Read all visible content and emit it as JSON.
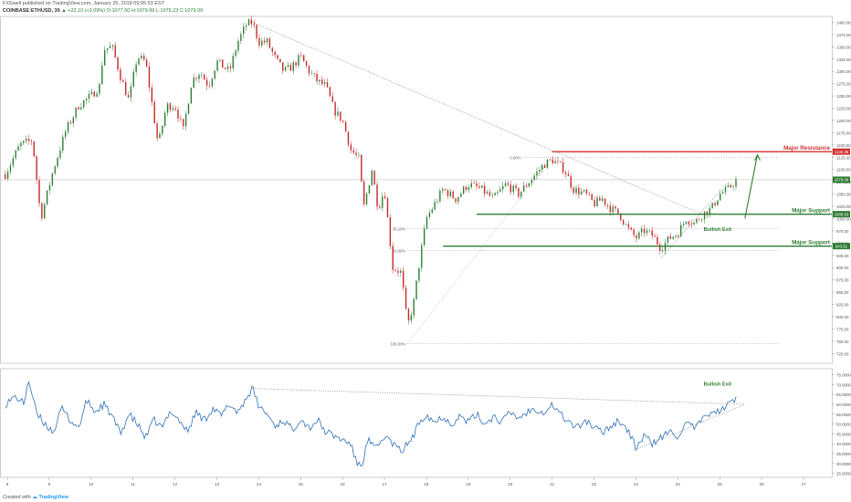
{
  "header": {
    "line1": "FXSwell published on TradingView.com, January 25, 2018 09:05:53 EST",
    "symbol": "COINBASE:ETHUSD, 30",
    "change": "▲ +22.10 (+2.09%)",
    "ohlc": "O:1077.50  H:1079.99  L:1075.23  C:1079.09"
  },
  "footer": {
    "created_with": "Created with",
    "brand": "TradingView"
  },
  "colors": {
    "bull": "#2e7d32",
    "bear": "#c62828",
    "resistance": "#d32f2f",
    "support": "#2e7d32",
    "rsi": "#2f6fb6",
    "fib": "#888888"
  },
  "chart_data": [
    {
      "type": "candlestick",
      "title": "COINBASE:ETHUSD, 30",
      "x_ticks": [
        "8",
        "9",
        "10",
        "11",
        "12",
        "13",
        "14",
        "15",
        "16",
        "17",
        "18",
        "19",
        "20",
        "21",
        "22",
        "23",
        "24",
        "25",
        "26",
        "27"
      ],
      "y_ticks": [
        "1400.00",
        "1375.00",
        "1350.00",
        "1325.00",
        "1300.00",
        "1275.00",
        "1250.00",
        "1225.00",
        "1200.00",
        "1175.00",
        "1150.00",
        "1125.00",
        "1100.00",
        "1075.00",
        "1050.00",
        "1025.00",
        "1000.00",
        "975.00",
        "950.00",
        "925.00",
        "900.00",
        "875.00",
        "850.00",
        "825.00",
        "800.00",
        "775.00",
        "750.00",
        "725.00"
      ],
      "ylim": [
        705,
        1412
      ],
      "last_price": "1079.09",
      "close_path": [
        [
          7.95,
          1090
        ],
        [
          8.3,
          1150
        ],
        [
          8.6,
          1160
        ],
        [
          8.8,
          1000
        ],
        [
          9.1,
          1100
        ],
        [
          9.4,
          1180
        ],
        [
          9.7,
          1230
        ],
        [
          10.0,
          1250
        ],
        [
          10.2,
          1270
        ],
        [
          10.3,
          1345
        ],
        [
          10.5,
          1350
        ],
        [
          10.7,
          1290
        ],
        [
          10.9,
          1240
        ],
        [
          11.1,
          1330
        ],
        [
          11.3,
          1320
        ],
        [
          11.6,
          1150
        ],
        [
          11.8,
          1230
        ],
        [
          12.0,
          1230
        ],
        [
          12.2,
          1180
        ],
        [
          12.4,
          1280
        ],
        [
          12.6,
          1300
        ],
        [
          12.8,
          1270
        ],
        [
          13.0,
          1320
        ],
        [
          13.3,
          1300
        ],
        [
          13.5,
          1360
        ],
        [
          13.7,
          1395
        ],
        [
          13.85,
          1400
        ],
        [
          14.0,
          1360
        ],
        [
          14.2,
          1360
        ],
        [
          14.4,
          1325
        ],
        [
          14.6,
          1300
        ],
        [
          14.8,
          1310
        ],
        [
          15.0,
          1330
        ],
        [
          15.2,
          1300
        ],
        [
          15.4,
          1280
        ],
        [
          15.6,
          1270
        ],
        [
          15.8,
          1220
        ],
        [
          16.0,
          1200
        ],
        [
          16.2,
          1140
        ],
        [
          16.4,
          1120
        ],
        [
          16.5,
          1020
        ],
        [
          16.7,
          1100
        ],
        [
          16.85,
          1020
        ],
        [
          17.0,
          1060
        ],
        [
          17.2,
          900
        ],
        [
          17.4,
          890
        ],
        [
          17.55,
          780
        ],
        [
          17.7,
          830
        ],
        [
          17.85,
          920
        ],
        [
          18.0,
          1000
        ],
        [
          18.2,
          1030
        ],
        [
          18.4,
          1060
        ],
        [
          18.7,
          1040
        ],
        [
          19.0,
          1070
        ],
        [
          19.3,
          1060
        ],
        [
          19.6,
          1040
        ],
        [
          19.9,
          1070
        ],
        [
          20.2,
          1050
        ],
        [
          20.5,
          1080
        ],
        [
          20.8,
          1110
        ],
        [
          21.0,
          1120
        ],
        [
          21.3,
          1100
        ],
        [
          21.5,
          1060
        ],
        [
          21.8,
          1050
        ],
        [
          22.0,
          1030
        ],
        [
          22.2,
          1040
        ],
        [
          22.4,
          1020
        ],
        [
          22.6,
          1010
        ],
        [
          22.8,
          980
        ],
        [
          23.0,
          960
        ],
        [
          23.2,
          975
        ],
        [
          23.4,
          965
        ],
        [
          23.6,
          940
        ],
        [
          23.8,
          960
        ],
        [
          24.0,
          970
        ],
        [
          24.2,
          1000
        ],
        [
          24.4,
          990
        ],
        [
          24.6,
          1010
        ],
        [
          24.8,
          1020
        ],
        [
          25.0,
          1050
        ],
        [
          25.2,
          1060
        ],
        [
          25.4,
          1079
        ]
      ],
      "fibonacci": {
        "levels": [
          "0.00%",
          "38.20%",
          "50.00%",
          "100.00%"
        ],
        "high": 1125,
        "low": 745
      },
      "horizontal_levels": [
        {
          "label": "Major Resistance",
          "value": 1136.38,
          "tag": "1136.38",
          "kind": "resistance"
        },
        {
          "label": "Major Support",
          "value": 1008.93,
          "tag": "1008.93",
          "kind": "support"
        },
        {
          "label": "Major Support",
          "value": 943.81,
          "tag": "943.81",
          "kind": "support"
        }
      ],
      "annotations": [
        "Bullish Exit"
      ],
      "trendline_desc": [
        [
          13.85,
          1400
        ],
        [
          24.6,
          1008
        ]
      ],
      "trendline_asc": [
        [
          23.6,
          920
        ],
        [
          25.0,
          1055
        ]
      ]
    },
    {
      "type": "line",
      "ylim": [
        23,
        78
      ],
      "y_ticks": [
        "75.0000",
        "70.0000",
        "65.0000",
        "60.0000",
        "55.0000",
        "50.0000",
        "45.0000",
        "40.0000",
        "35.0000",
        "30.0000",
        "25.0000"
      ],
      "path": [
        [
          7.95,
          60
        ],
        [
          8.2,
          64
        ],
        [
          8.4,
          60
        ],
        [
          8.5,
          73
        ],
        [
          8.7,
          55
        ],
        [
          8.9,
          50
        ],
        [
          9.1,
          46
        ],
        [
          9.3,
          58
        ],
        [
          9.5,
          52
        ],
        [
          9.7,
          48
        ],
        [
          9.9,
          62
        ],
        [
          10.1,
          56
        ],
        [
          10.3,
          60
        ],
        [
          10.5,
          54
        ],
        [
          10.7,
          45
        ],
        [
          10.9,
          55
        ],
        [
          11.1,
          50
        ],
        [
          11.3,
          43
        ],
        [
          11.5,
          52
        ],
        [
          11.7,
          48
        ],
        [
          11.9,
          57
        ],
        [
          12.1,
          52
        ],
        [
          12.3,
          46
        ],
        [
          12.5,
          56
        ],
        [
          12.7,
          52
        ],
        [
          12.9,
          58
        ],
        [
          13.1,
          54
        ],
        [
          13.3,
          60
        ],
        [
          13.5,
          56
        ],
        [
          13.7,
          63
        ],
        [
          13.85,
          68
        ],
        [
          14.0,
          59
        ],
        [
          14.2,
          55
        ],
        [
          14.4,
          49
        ],
        [
          14.6,
          52
        ],
        [
          14.8,
          47
        ],
        [
          15.0,
          53
        ],
        [
          15.2,
          48
        ],
        [
          15.4,
          52
        ],
        [
          15.6,
          46
        ],
        [
          15.8,
          44
        ],
        [
          16.0,
          42
        ],
        [
          16.2,
          40
        ],
        [
          16.3,
          32
        ],
        [
          16.45,
          28
        ],
        [
          16.6,
          42
        ],
        [
          16.8,
          37
        ],
        [
          17.0,
          44
        ],
        [
          17.2,
          40
        ],
        [
          17.4,
          36
        ],
        [
          17.55,
          40
        ],
        [
          17.7,
          44
        ],
        [
          17.85,
          52
        ],
        [
          18.0,
          55
        ],
        [
          18.2,
          51
        ],
        [
          18.4,
          54
        ],
        [
          18.6,
          50
        ],
        [
          18.8,
          54
        ],
        [
          19.0,
          51
        ],
        [
          19.2,
          55
        ],
        [
          19.4,
          50
        ],
        [
          19.6,
          54
        ],
        [
          19.8,
          51
        ],
        [
          20.0,
          56
        ],
        [
          20.2,
          53
        ],
        [
          20.4,
          56
        ],
        [
          20.6,
          58
        ],
        [
          20.8,
          56
        ],
        [
          21.0,
          60
        ],
        [
          21.2,
          55
        ],
        [
          21.4,
          51
        ],
        [
          21.6,
          48
        ],
        [
          21.8,
          52
        ],
        [
          22.0,
          48
        ],
        [
          22.2,
          46
        ],
        [
          22.4,
          49
        ],
        [
          22.6,
          52
        ],
        [
          22.8,
          47
        ],
        [
          23.0,
          38
        ],
        [
          23.2,
          44
        ],
        [
          23.4,
          40
        ],
        [
          23.6,
          43
        ],
        [
          23.8,
          46
        ],
        [
          24.0,
          44
        ],
        [
          24.2,
          50
        ],
        [
          24.4,
          48
        ],
        [
          24.6,
          52
        ],
        [
          24.8,
          57
        ],
        [
          25.0,
          56
        ],
        [
          25.2,
          60
        ],
        [
          25.4,
          63
        ]
      ],
      "annotations": [
        "Bullish Exit"
      ],
      "trendline_desc": [
        [
          13.85,
          68
        ],
        [
          25.6,
          60
        ]
      ],
      "trendline_asc": [
        [
          23.0,
          37
        ],
        [
          25.6,
          60
        ]
      ]
    }
  ]
}
